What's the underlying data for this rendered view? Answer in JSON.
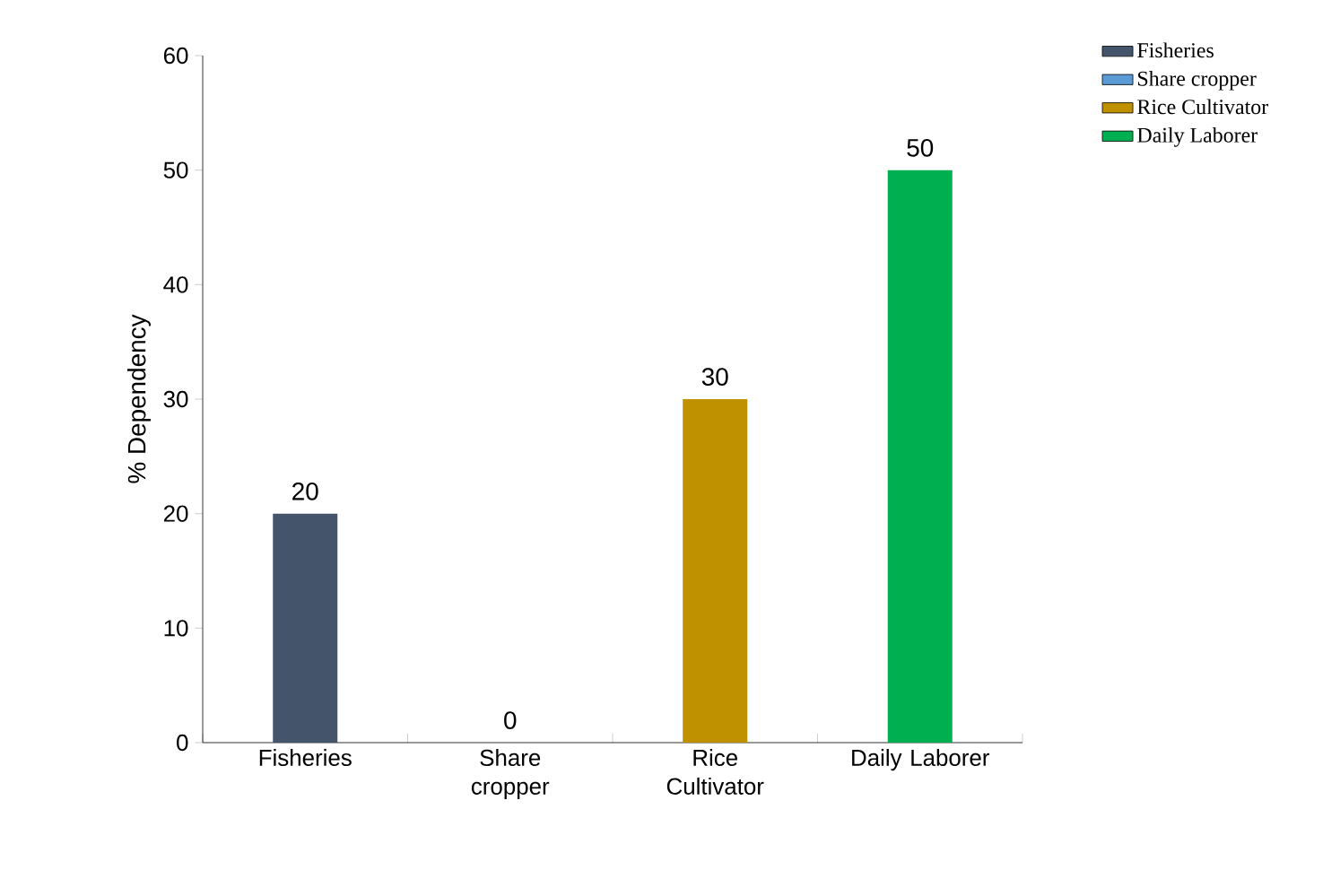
{
  "chart_data": {
    "type": "bar",
    "ylabel": "% Dependency",
    "categories": [
      "Fisheries",
      "Share cropper",
      "Rice Cultivator",
      "Daily Laborer"
    ],
    "series": [
      {
        "name": "Fisheries",
        "color": "#44546a",
        "values": [
          20,
          null,
          null,
          null
        ],
        "value_labels": [
          "20",
          null,
          null,
          null
        ]
      },
      {
        "name": "Share cropper",
        "color": "#5b9bd5",
        "values": [
          null,
          0,
          null,
          null
        ],
        "value_labels": [
          null,
          "0",
          null,
          null
        ]
      },
      {
        "name": "Rice Cultivator",
        "color": "#bf9000",
        "values": [
          null,
          null,
          30,
          null
        ],
        "value_labels": [
          null,
          null,
          "30",
          null
        ]
      },
      {
        "name": "Daily Laborer",
        "color": "#00b050",
        "values": [
          null,
          null,
          null,
          50
        ],
        "value_labels": [
          null,
          null,
          null,
          "50"
        ]
      }
    ],
    "ylim": [
      0,
      60
    ],
    "yticks": [
      0,
      10,
      20,
      30,
      40,
      50,
      60
    ],
    "grid": false,
    "legend": "top right"
  }
}
